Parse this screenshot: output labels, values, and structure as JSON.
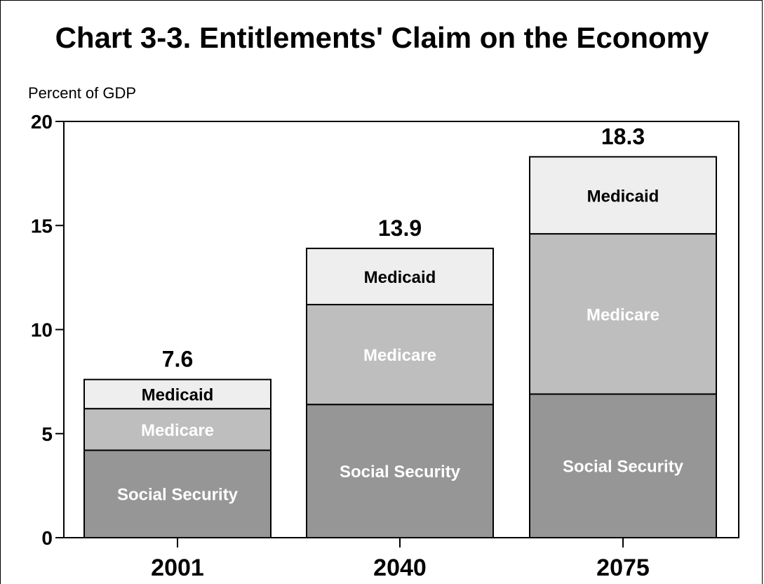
{
  "title": "Chart 3-3.  Entitlements' Claim on the Economy",
  "chart_data": {
    "type": "bar",
    "stacked": true,
    "title": "Chart 3-3.  Entitlements' Claim on the Economy",
    "ylabel": "Percent of GDP",
    "xlabel": "",
    "ylim": [
      0,
      20
    ],
    "yticks": [
      0,
      5,
      10,
      15,
      20
    ],
    "categories": [
      "2001",
      "2040",
      "2075"
    ],
    "totals": [
      7.6,
      13.9,
      18.3
    ],
    "total_labels": [
      "7.6",
      "13.9",
      "18.3"
    ],
    "series": [
      {
        "name": "Social Security",
        "values": [
          4.2,
          6.4,
          6.9
        ],
        "color": "#969696",
        "label_color": "#ffffff"
      },
      {
        "name": "Medicare",
        "values": [
          2.0,
          4.8,
          7.7
        ],
        "color": "#bebebe",
        "label_color": "#ffffff"
      },
      {
        "name": "Medicaid",
        "values": [
          1.4,
          2.7,
          3.7
        ],
        "color": "#eeeeee",
        "label_color": "#000000"
      }
    ],
    "grid": false,
    "legend": "none"
  }
}
